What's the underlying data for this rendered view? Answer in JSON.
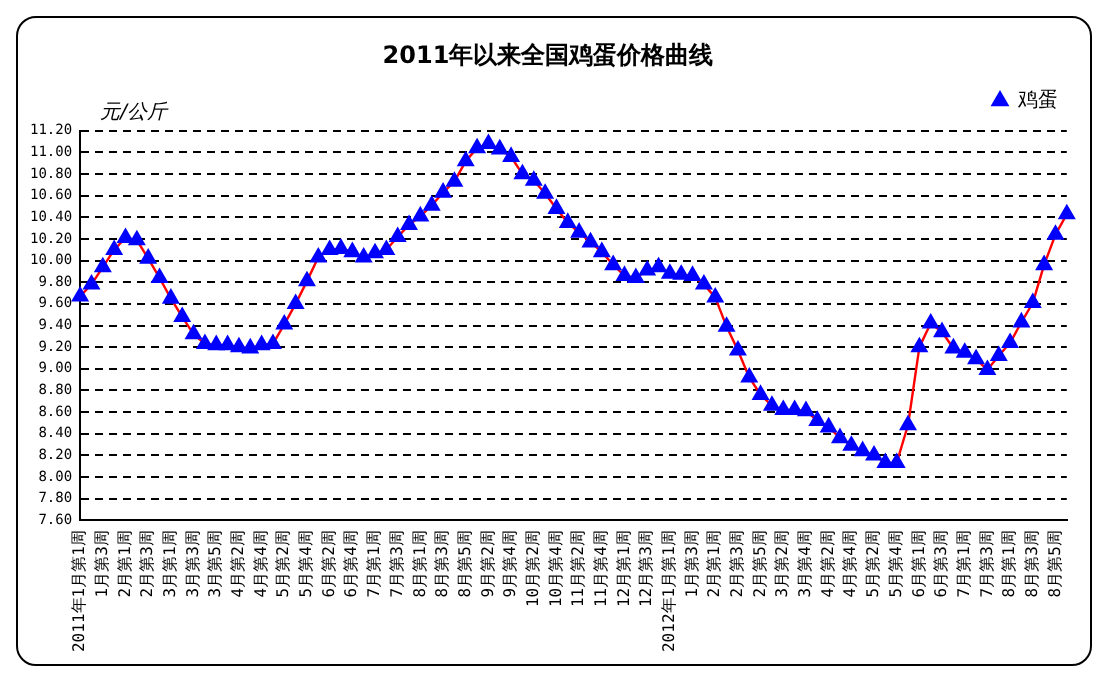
{
  "chart_data": {
    "type": "line",
    "title": "2011年以来全国鸡蛋价格曲线",
    "ylabel": "元/公斤",
    "categories": [
      "2011年1月第1周",
      null,
      "1月第3周",
      null,
      "2月第1周",
      null,
      "2月第3周",
      null,
      "3月第1周",
      null,
      "3月第3周",
      null,
      "3月第5周",
      null,
      "4月第2周",
      null,
      "4月第4周",
      null,
      "5月第2周",
      null,
      "5月第4周",
      null,
      "6月第2周",
      null,
      "6月第4周",
      null,
      "7月第1周",
      null,
      "7月第3周",
      null,
      "8月第1周",
      null,
      "8月第3周",
      null,
      "8月第5周",
      null,
      "9月第2周",
      null,
      "9月第4周",
      null,
      "10月第2周",
      null,
      "10月第4周",
      null,
      "11月第2周",
      null,
      "11月第4周",
      null,
      "12月第1周",
      null,
      "12月第3周",
      null,
      "2012年1月第1周",
      null,
      "1月第3周",
      null,
      "2月第1周",
      null,
      "2月第3周",
      null,
      "2月第5周",
      null,
      "3月第2周",
      null,
      "3月第4周",
      null,
      "4月第2周",
      null,
      "4月第4周",
      null,
      "5月第2周",
      null,
      "5月第4周",
      null,
      "6月第1周",
      null,
      "6月第3周",
      null,
      "7月第1周",
      null,
      "7月第3周",
      null,
      "8月第1周",
      null,
      "8月第3周",
      null,
      "8月第5周",
      null
    ],
    "series": [
      {
        "name": "鸡蛋",
        "color": "#0000ff",
        "values": [
          9.67,
          9.78,
          9.94,
          10.1,
          10.21,
          10.19,
          10.02,
          9.84,
          9.65,
          9.48,
          9.32,
          9.23,
          9.22,
          9.22,
          9.2,
          9.19,
          9.22,
          9.23,
          9.41,
          9.6,
          9.81,
          10.03,
          10.1,
          10.11,
          10.08,
          10.03,
          10.07,
          10.1,
          10.22,
          10.33,
          10.41,
          10.51,
          10.63,
          10.73,
          10.92,
          11.04,
          11.08,
          11.03,
          10.96,
          10.8,
          10.74,
          10.62,
          10.48,
          10.35,
          10.26,
          10.17,
          10.08,
          9.96,
          9.86,
          9.84,
          9.91,
          9.94,
          9.88,
          9.87,
          9.86,
          9.78,
          9.66,
          9.39,
          9.17,
          8.92,
          8.76,
          8.66,
          8.62,
          8.62,
          8.61,
          8.52,
          8.46,
          8.36,
          8.29,
          8.24,
          8.2,
          8.13,
          8.13,
          8.48,
          9.2,
          9.42,
          9.34,
          9.19,
          9.15,
          9.09,
          8.99,
          9.12,
          9.24,
          9.43,
          9.61,
          9.96,
          10.24,
          10.43
        ]
      }
    ],
    "ylim": [
      7.6,
      11.2
    ],
    "yticks": [
      {
        "value": 7.6,
        "label": "7.60"
      },
      {
        "value": 7.8,
        "label": "7.80"
      },
      {
        "value": 8.0,
        "label": "8.00"
      },
      {
        "value": 8.2,
        "label": "8.20"
      },
      {
        "value": 8.4,
        "label": "8.40"
      },
      {
        "value": 8.6,
        "label": "8.60"
      },
      {
        "value": 8.8,
        "label": "8.80"
      },
      {
        "value": 9.0,
        "label": "9.00"
      },
      {
        "value": 9.2,
        "label": "9.20"
      },
      {
        "value": 9.4,
        "label": "9.40"
      },
      {
        "value": 9.6,
        "label": "9.60"
      },
      {
        "value": 9.8,
        "label": "9.80"
      },
      {
        "value": 10.0,
        "label": "10.00"
      },
      {
        "value": 10.2,
        "label": "10.20"
      },
      {
        "value": 10.4,
        "label": "10.40"
      },
      {
        "value": 10.6,
        "label": "10.60"
      },
      {
        "value": 10.8,
        "label": "10.80"
      },
      {
        "value": 11.0,
        "label": "11.00"
      },
      {
        "value": 11.2,
        "label": "11.20"
      }
    ],
    "grid": "y",
    "legend": "top right",
    "marker": "triangle",
    "line_style": "solid"
  }
}
